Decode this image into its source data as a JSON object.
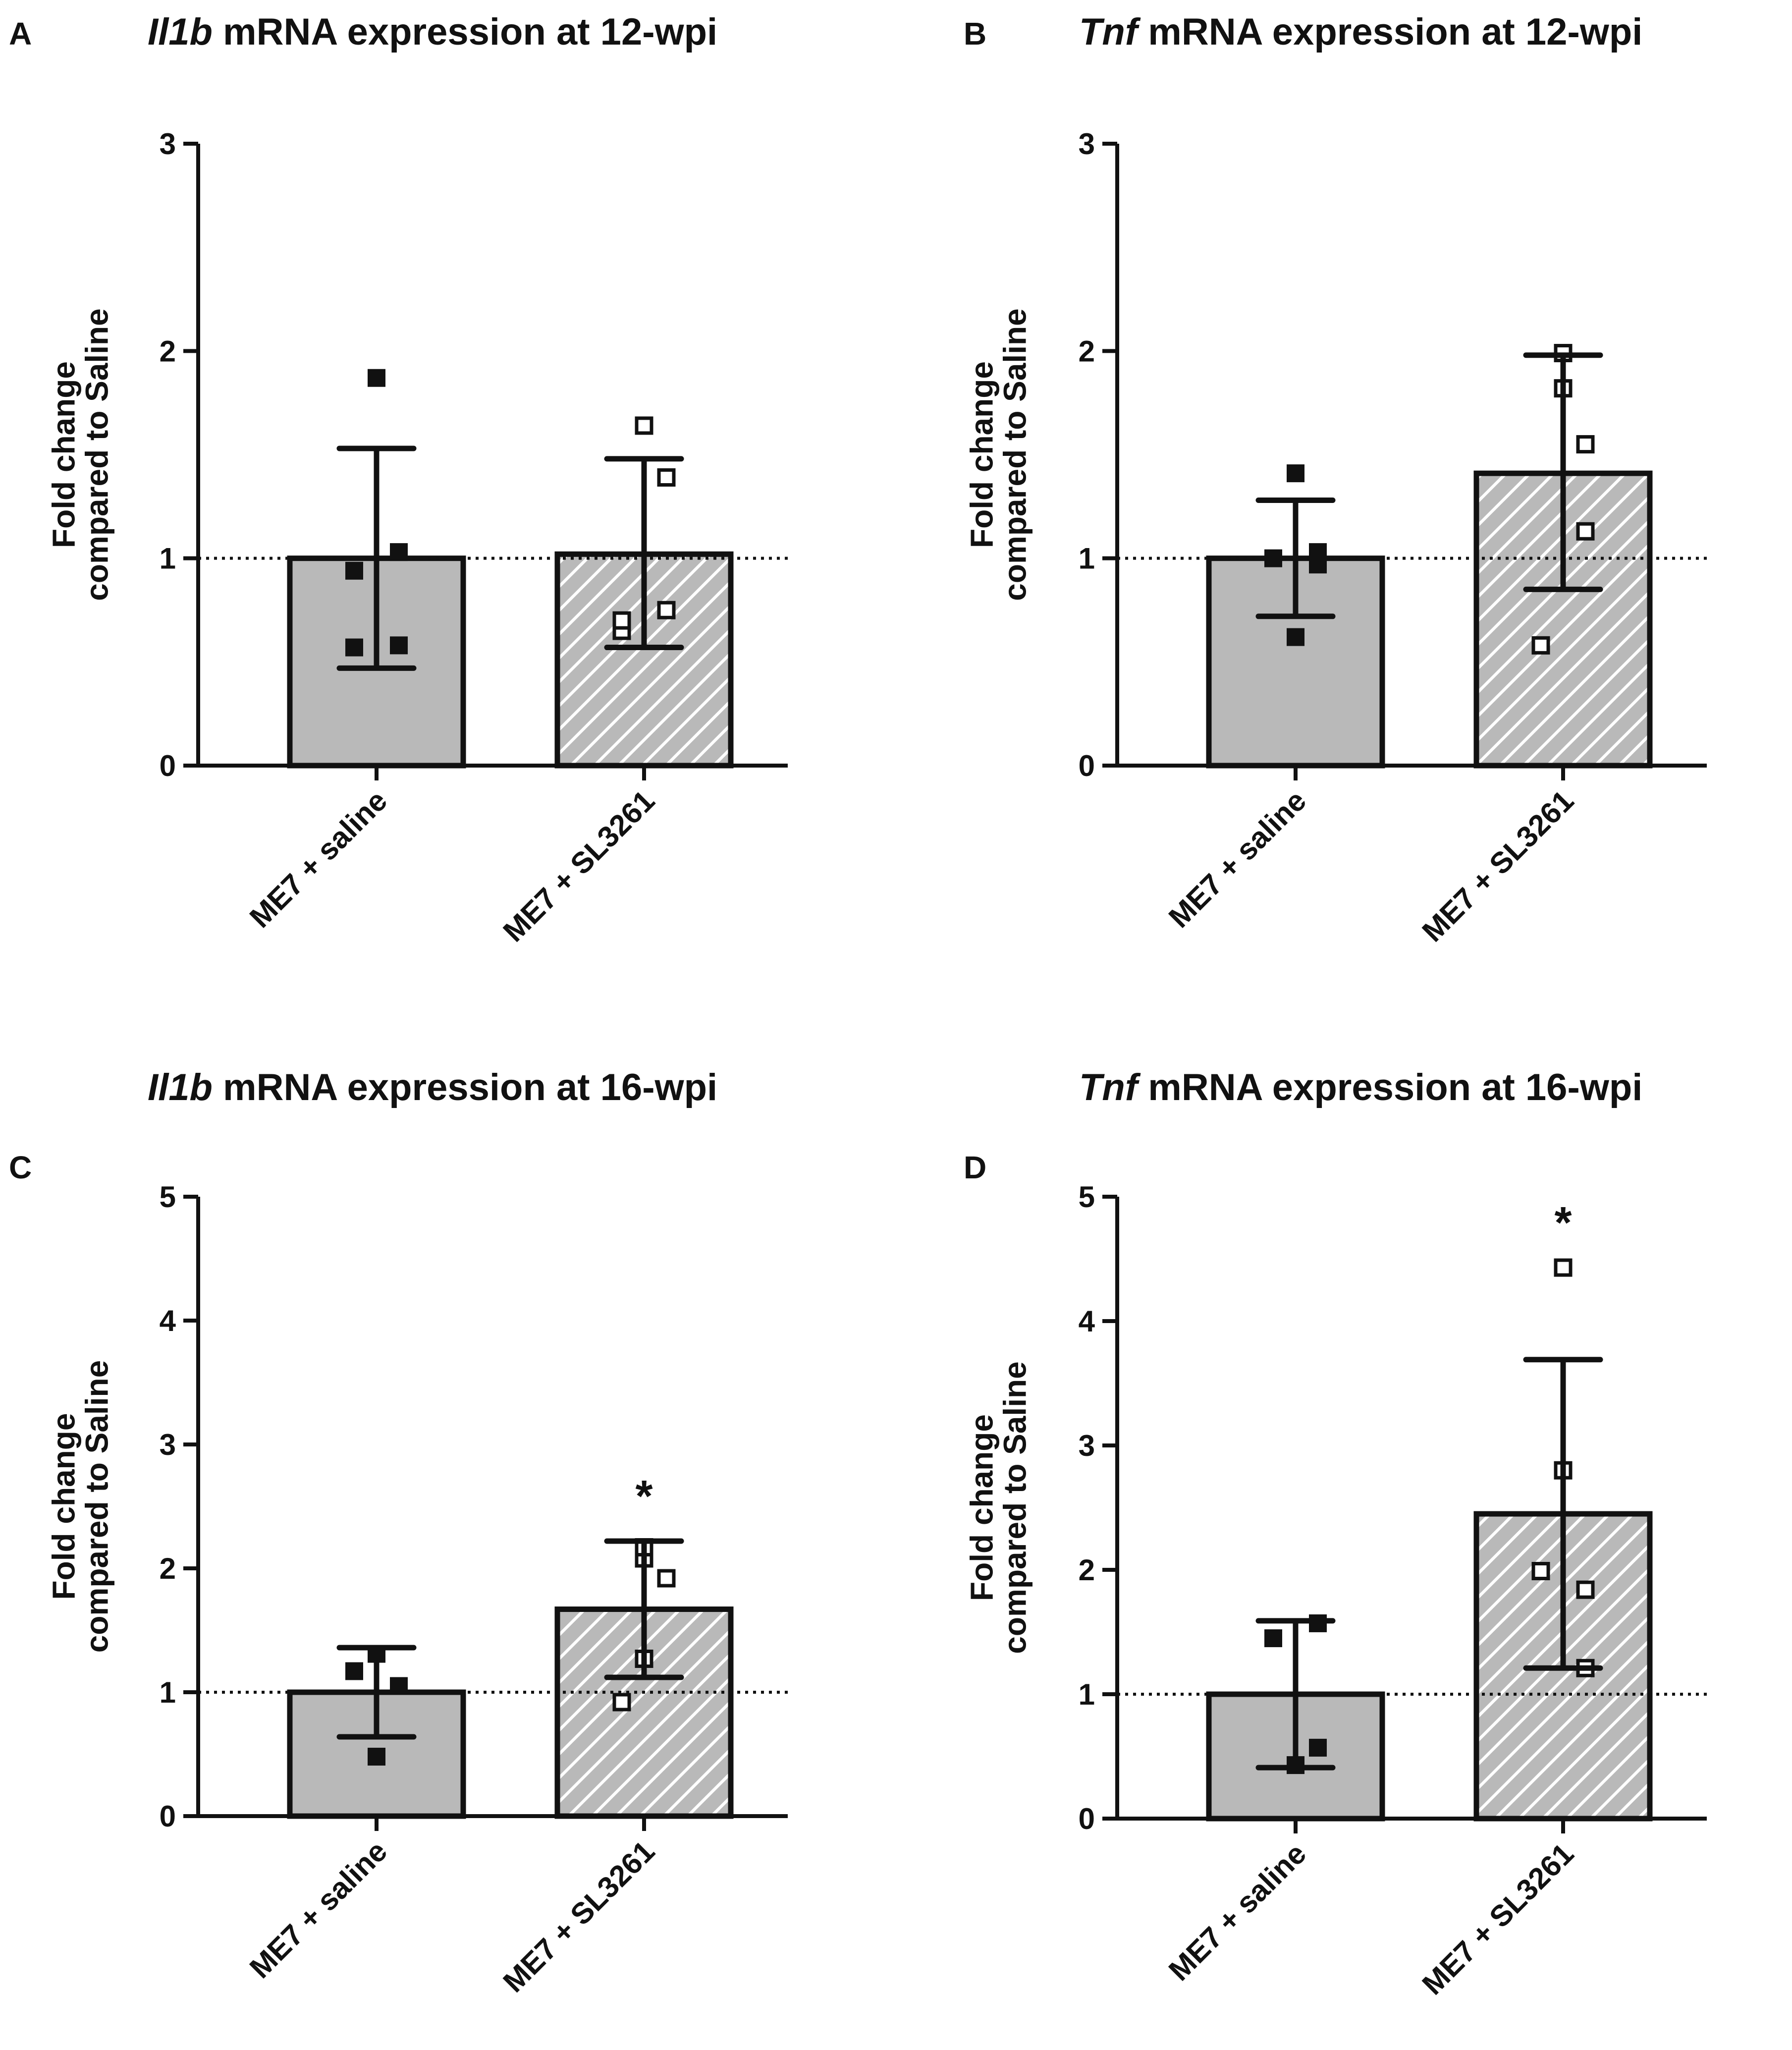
{
  "figure_letters": [
    "A",
    "B",
    "C",
    "D"
  ],
  "chart_data": [
    {
      "panel": "A",
      "type": "bar",
      "title_gene": "Il1b",
      "title_rest": " mRNA expression at 12-wpi",
      "ylabel_line1": "Fold change",
      "ylabel_line2": "compared to Saline",
      "ylim": [
        0,
        3
      ],
      "yticks": [
        "0",
        "1",
        "2",
        "3"
      ],
      "reference_line": 1,
      "categories": [
        "ME7 + saline",
        "ME7 + SL3261"
      ],
      "values": [
        1.0,
        1.02
      ],
      "error_low": [
        0.47,
        0.57
      ],
      "error_high": [
        1.53,
        1.48
      ],
      "points": [
        [
          0.94,
          1.03,
          0.57,
          0.58,
          1.87
        ],
        [
          0.65,
          0.75,
          0.7,
          1.39,
          1.64
        ]
      ],
      "significance": [
        "",
        ""
      ],
      "colors": {
        "bar_fill": "#b9b9b9",
        "stroke": "#111111",
        "hatch": "#ffffff"
      }
    },
    {
      "panel": "B",
      "type": "bar",
      "title_gene": "Tnf",
      "title_rest": " mRNA expression at 12-wpi",
      "ylabel_line1": "Fold change",
      "ylabel_line2": "compared to Saline",
      "ylim": [
        0,
        3
      ],
      "yticks": [
        "0",
        "1",
        "2",
        "3"
      ],
      "reference_line": 1,
      "categories": [
        "ME7 + saline",
        "ME7 + SL3261"
      ],
      "values": [
        1.0,
        1.41
      ],
      "error_low": [
        0.72,
        0.85
      ],
      "error_high": [
        1.28,
        1.98
      ],
      "points": [
        [
          1.0,
          1.03,
          0.97,
          0.62,
          1.41
        ],
        [
          0.58,
          1.13,
          1.55,
          1.82,
          1.99
        ]
      ],
      "significance": [
        "",
        ""
      ],
      "colors": {
        "bar_fill": "#b9b9b9",
        "stroke": "#111111",
        "hatch": "#ffffff"
      }
    },
    {
      "panel": "C",
      "type": "bar",
      "title_gene": "Il1b",
      "title_rest": " mRNA expression at 16-wpi",
      "ylabel_line1": "Fold change",
      "ylabel_line2": "compared to Saline",
      "ylim": [
        0,
        5
      ],
      "yticks": [
        "0",
        "1",
        "2",
        "3",
        "4",
        "5"
      ],
      "reference_line": 1,
      "categories": [
        "ME7 + saline",
        "ME7 + SL3261"
      ],
      "values": [
        1.0,
        1.67
      ],
      "error_low": [
        0.64,
        1.12
      ],
      "error_high": [
        1.36,
        2.22
      ],
      "points": [
        [
          1.17,
          1.31,
          1.05,
          0.48
        ],
        [
          0.92,
          1.27,
          1.92,
          2.08,
          2.17
        ]
      ],
      "significance": [
        "",
        "*"
      ],
      "colors": {
        "bar_fill": "#b9b9b9",
        "stroke": "#111111",
        "hatch": "#ffffff"
      }
    },
    {
      "panel": "D",
      "type": "bar",
      "title_gene": "Tnf",
      "title_rest": " mRNA expression at 16-wpi",
      "ylabel_line1": "Fold change",
      "ylabel_line2": "compared to Saline",
      "ylim": [
        0,
        5
      ],
      "yticks": [
        "0",
        "1",
        "2",
        "3",
        "4",
        "5"
      ],
      "reference_line": 1,
      "categories": [
        "ME7 + saline",
        "ME7 + SL3261"
      ],
      "values": [
        1.0,
        2.45
      ],
      "error_low": [
        0.41,
        1.21
      ],
      "error_high": [
        1.59,
        3.69
      ],
      "points": [
        [
          1.45,
          1.57,
          0.57,
          0.43
        ],
        [
          1.99,
          1.84,
          1.21,
          2.8,
          4.43
        ]
      ],
      "significance": [
        "",
        "*"
      ],
      "colors": {
        "bar_fill": "#b9b9b9",
        "stroke": "#111111",
        "hatch": "#ffffff"
      }
    }
  ]
}
